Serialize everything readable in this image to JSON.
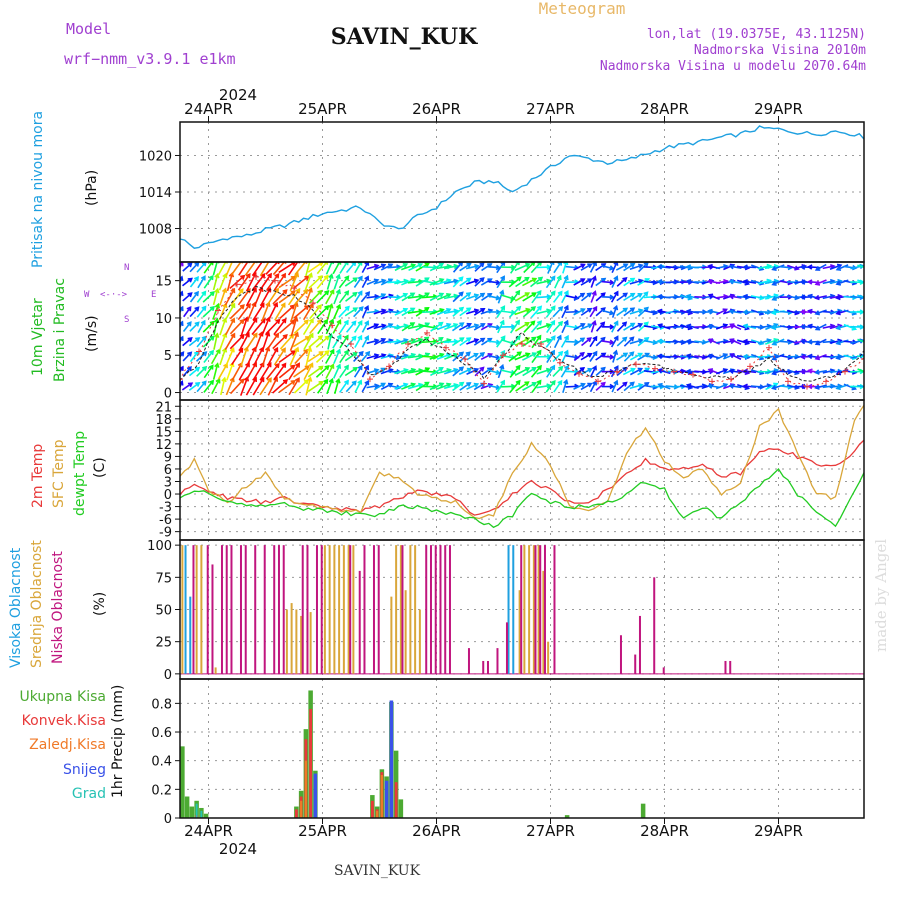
{
  "header": {
    "model_label": "Model",
    "model_name": "wrf−nmm_v3.9.1  e1km",
    "title": "SAVIN_KUK",
    "product": "Meteogram",
    "coords": "lon,lat (19.0375E, 43.1125N)",
    "elevation": "Nadmorska Visina 2010m",
    "model_elevation": "Nadmorska Visina u modelu 2070.64m",
    "footer_station": "SAVIN_KUK",
    "watermark": "made by Angel"
  },
  "colors": {
    "pressure": "#1fa0e0",
    "wind_label": "#22bb22",
    "temp2m": "#e83a3a",
    "sfc": "#d9a63a",
    "dewpt": "#22cc22",
    "high_cloud": "#1fa0e0",
    "mid_cloud": "#d9a63a",
    "low_cloud": "#c0157e",
    "total_precip": "#4caa32",
    "conv_precip": "#e83a3a",
    "frozen": "#f07a28",
    "snow": "#3a52e8",
    "hail": "#27c2b4",
    "axis_purple": "#a040d0"
  },
  "chart_data": [
    {
      "type": "line",
      "panel": "pressure",
      "ylabel_rot": "Pritisak na nivou mora",
      "unit": "(hPa)",
      "yticks": [
        1008,
        1014,
        1020
      ],
      "ylim": [
        1002.5,
        1025.5
      ],
      "top_year": "2024",
      "days": [
        "24APR",
        "25APR",
        "26APR",
        "27APR",
        "28APR",
        "29APR"
      ],
      "xlim_hours": [
        0,
        144
      ],
      "anchors_h": [
        0,
        3,
        6,
        10,
        14,
        18,
        22,
        26,
        30,
        34,
        38,
        42,
        46,
        50,
        54,
        58,
        62,
        66,
        70,
        74,
        78,
        82,
        86,
        90,
        94,
        98,
        102,
        106,
        110,
        114,
        118,
        122,
        126,
        130,
        134,
        138,
        142,
        144
      ],
      "anchors_v": [
        1006.5,
        1004.8,
        1005.5,
        1006.5,
        1006.8,
        1007.8,
        1008.5,
        1009.5,
        1010.5,
        1011.0,
        1011.5,
        1009.0,
        1007.8,
        1010.0,
        1011.5,
        1014.0,
        1015.5,
        1015.8,
        1014.0,
        1016.0,
        1018.0,
        1020.0,
        1019.5,
        1018.8,
        1019.2,
        1020.2,
        1021.2,
        1021.8,
        1022.3,
        1023.0,
        1023.5,
        1024.5,
        1024.3,
        1023.8,
        1023.5,
        1024.0,
        1023.5,
        1023.0
      ]
    },
    {
      "type": "line",
      "panel": "wind",
      "ylabel_rot": [
        "10m Vjetar",
        "Brzina i Pravac"
      ],
      "unit": "(m/s)",
      "compass": {
        "n": "N",
        "s": "S",
        "e": "E",
        "w": "W",
        "arrows": "<-·->"
      },
      "yticks": [
        0,
        5,
        10,
        15
      ],
      "ylim": [
        -1,
        17.5
      ],
      "series": [
        {
          "name": "speed",
          "color": "#222222",
          "values_h": [
            0,
            4,
            8,
            12,
            16,
            20,
            24,
            28,
            32,
            36,
            40,
            44,
            48,
            52,
            56,
            60,
            64,
            68,
            72,
            76,
            80,
            84,
            88,
            92,
            96,
            100,
            104,
            108,
            112,
            116,
            120,
            124,
            128,
            132,
            136,
            140,
            144
          ],
          "values": [
            1.5,
            4.0,
            9.5,
            13.0,
            14.0,
            13.5,
            13.0,
            11.0,
            7.5,
            5.5,
            2.5,
            3.0,
            6.0,
            7.0,
            5.5,
            4.0,
            2.0,
            5.0,
            8.0,
            6.0,
            4.5,
            3.0,
            2.0,
            3.0,
            4.0,
            3.5,
            3.0,
            2.5,
            2.0,
            2.0,
            3.0,
            4.5,
            2.5,
            1.5,
            2.0,
            3.0,
            5.5
          ]
        },
        {
          "name": "gust",
          "color": "#e83a3a",
          "values_h": [
            0,
            4,
            8,
            12,
            16,
            20,
            24,
            28,
            32,
            36,
            40,
            44,
            48,
            52,
            56,
            60,
            64,
            68,
            72,
            76,
            80,
            84,
            88,
            92,
            96,
            100,
            104,
            108,
            112,
            116,
            120,
            124,
            128,
            132,
            136,
            140,
            144
          ],
          "values": [
            1.8,
            5.5,
            11.0,
            14.5,
            15.5,
            15.0,
            14.0,
            12.0,
            9.0,
            6.5,
            1.8,
            3.5,
            6.5,
            8.0,
            6.0,
            4.5,
            1.2,
            5.0,
            6.5,
            6.5,
            4.0,
            2.5,
            1.5,
            2.8,
            3.8,
            3.2,
            2.8,
            2.4,
            1.5,
            1.8,
            3.5,
            6.0,
            1.5,
            0.8,
            1.5,
            2.8,
            4.5
          ]
        }
      ]
    },
    {
      "type": "line",
      "panel": "temperature",
      "ylabel_rot": [
        "2m Temp",
        "SFC Temp",
        "dewpt Temp"
      ],
      "unit": "(C)",
      "yticks": [
        -9,
        -6,
        -3,
        0,
        3,
        6,
        9,
        12,
        15,
        18,
        21
      ],
      "ylim": [
        -11,
        22.5
      ],
      "series": [
        {
          "name": "2m Temp",
          "color": "#e83a3a",
          "values_h": [
            0,
            3,
            6,
            10,
            14,
            18,
            22,
            26,
            30,
            34,
            38,
            42,
            46,
            50,
            54,
            58,
            62,
            66,
            70,
            74,
            78,
            82,
            86,
            90,
            94,
            98,
            102,
            106,
            110,
            114,
            118,
            122,
            126,
            130,
            134,
            138,
            142,
            144
          ],
          "values": [
            0,
            2,
            1,
            -1,
            -1.5,
            -2,
            -1,
            -2.5,
            -3,
            -3.5,
            -4,
            -3,
            -1,
            1,
            0,
            -1,
            -5,
            -4,
            0,
            3,
            1,
            -2,
            -2,
            1,
            5,
            8,
            6,
            6,
            7,
            4,
            5,
            10,
            11,
            9,
            7,
            7,
            10,
            13
          ]
        },
        {
          "name": "SFC Temp",
          "color": "#d9a63a",
          "values_h": [
            0,
            3,
            6,
            10,
            14,
            18,
            22,
            26,
            30,
            34,
            38,
            42,
            46,
            50,
            54,
            58,
            62,
            66,
            70,
            74,
            78,
            82,
            86,
            90,
            94,
            98,
            102,
            106,
            110,
            114,
            118,
            122,
            126,
            130,
            134,
            138,
            142,
            144
          ],
          "values": [
            4,
            8,
            1,
            -2,
            2,
            5,
            -1,
            -3,
            -3,
            -4,
            -4,
            5,
            4,
            0,
            -1,
            -2,
            -6,
            -5,
            5,
            12,
            7,
            -3,
            -4,
            -2,
            10,
            16,
            8,
            4,
            6,
            0,
            3,
            16,
            20,
            10,
            0,
            -1,
            18,
            21
          ]
        },
        {
          "name": "dewpt Temp",
          "color": "#22cc22",
          "values_h": [
            0,
            3,
            6,
            10,
            14,
            18,
            22,
            26,
            30,
            34,
            38,
            42,
            46,
            50,
            54,
            58,
            62,
            66,
            70,
            74,
            78,
            82,
            86,
            90,
            94,
            98,
            102,
            106,
            110,
            114,
            118,
            122,
            126,
            130,
            134,
            138,
            142,
            144
          ],
          "values": [
            -1,
            1,
            0,
            -2,
            -2.5,
            -3,
            -2,
            -3.5,
            -4,
            -4.5,
            -5,
            -5,
            -3,
            -3,
            -4,
            -5,
            -6,
            -8,
            -5,
            0,
            -2,
            -3,
            -3,
            -2,
            0,
            3,
            1,
            -6,
            -3,
            -6,
            -2,
            2,
            6,
            0,
            -4,
            -8,
            1,
            5
          ]
        }
      ]
    },
    {
      "type": "bar",
      "panel": "clouds",
      "ylabel_rot": [
        "Visoka Oblacnost",
        "Srednja Oblacnost",
        "Niska Oblacnost"
      ],
      "unit": "(%)",
      "yticks": [
        0,
        25,
        50,
        75,
        100
      ],
      "ylim": [
        -4,
        104
      ],
      "series": [
        {
          "name": "Visoka Oblacnost",
          "color": "#1fa0e0",
          "h": [
            1,
            2,
            69,
            70
          ],
          "values": [
            100,
            60,
            100,
            100
          ]
        },
        {
          "name": "Srednja Oblacnost",
          "color": "#d9a63a",
          "h": [
            0,
            3,
            4,
            7,
            22,
            23,
            24,
            25,
            27,
            30,
            31,
            32,
            33,
            34,
            35,
            36,
            44,
            45,
            46,
            47,
            48,
            49,
            50,
            71,
            72,
            73,
            74,
            75,
            76,
            77
          ],
          "values": [
            100,
            100,
            100,
            5,
            50,
            55,
            50,
            45,
            48,
            100,
            100,
            100,
            100,
            100,
            100,
            100,
            60,
            100,
            100,
            65,
            100,
            100,
            50,
            65,
            100,
            100,
            100,
            100,
            80,
            25
          ]
        },
        {
          "name": "Niska Oblacnost",
          "color": "#c0157e",
          "h": [
            2,
            5,
            6,
            8,
            9,
            10,
            12,
            13,
            15,
            17,
            19,
            20,
            21,
            25,
            26,
            28,
            29,
            35,
            37,
            38,
            40,
            41,
            46,
            51,
            52,
            53,
            54,
            55,
            56,
            60,
            63,
            64,
            66,
            68,
            71,
            74,
            75,
            76,
            78,
            92,
            95,
            96,
            99,
            101,
            114,
            115
          ],
          "values": [
            100,
            100,
            85,
            100,
            100,
            100,
            100,
            100,
            100,
            100,
            100,
            100,
            100,
            100,
            100,
            100,
            100,
            100,
            80,
            100,
            100,
            100,
            100,
            100,
            100,
            100,
            100,
            100,
            100,
            20,
            10,
            10,
            20,
            40,
            100,
            100,
            100,
            100,
            100,
            30,
            15,
            45,
            75,
            5,
            10,
            10
          ]
        }
      ]
    },
    {
      "type": "bar",
      "panel": "precip",
      "ylabel": "1hr Precip (mm)",
      "legend": [
        "Ukupna Kisa",
        "Konvek.Kisa",
        "Zaledj.Kisa",
        "Snijeg",
        "Grad"
      ],
      "yticks": [
        0,
        0.2,
        0.4,
        0.6,
        0.8
      ],
      "ylim": [
        0,
        0.97
      ],
      "bottom_year": "2024",
      "series": [
        {
          "name": "Ukupna Kisa",
          "color": "#4caa32",
          "h": [
            0,
            1,
            2,
            3,
            4,
            5,
            24,
            25,
            26,
            27,
            28,
            40,
            41,
            42,
            43,
            44,
            45,
            46,
            81,
            97
          ],
          "values": [
            0.5,
            0.15,
            0.08,
            0.12,
            0.07,
            0.03,
            0.08,
            0.19,
            0.62,
            0.89,
            0.33,
            0.16,
            0.08,
            0.34,
            0.29,
            0.81,
            0.47,
            0.13,
            0.02,
            0.1
          ]
        },
        {
          "name": "Konvek.Kisa",
          "color": "#e83a3a",
          "h": [
            3,
            24,
            25,
            26,
            27,
            28,
            40,
            41,
            42,
            43,
            44,
            45
          ],
          "values": [
            0.02,
            0.06,
            0.15,
            0.55,
            0.76,
            0.3,
            0.12,
            0.06,
            0.32,
            0.2,
            0.52,
            0.25
          ]
        },
        {
          "name": "Zaledj.Kisa",
          "color": "#f07a28",
          "h": [
            25,
            26,
            41,
            42
          ],
          "values": [
            0.12,
            0.4,
            0.05,
            0.3
          ]
        },
        {
          "name": "Snijeg",
          "color": "#3a52e8",
          "h": [
            28,
            43,
            44
          ],
          "values": [
            0.31,
            0.26,
            0.82
          ]
        },
        {
          "name": "Grad",
          "color": "#27c2b4",
          "h": [
            3,
            4
          ],
          "values": [
            0.1,
            0.05
          ]
        }
      ]
    }
  ]
}
